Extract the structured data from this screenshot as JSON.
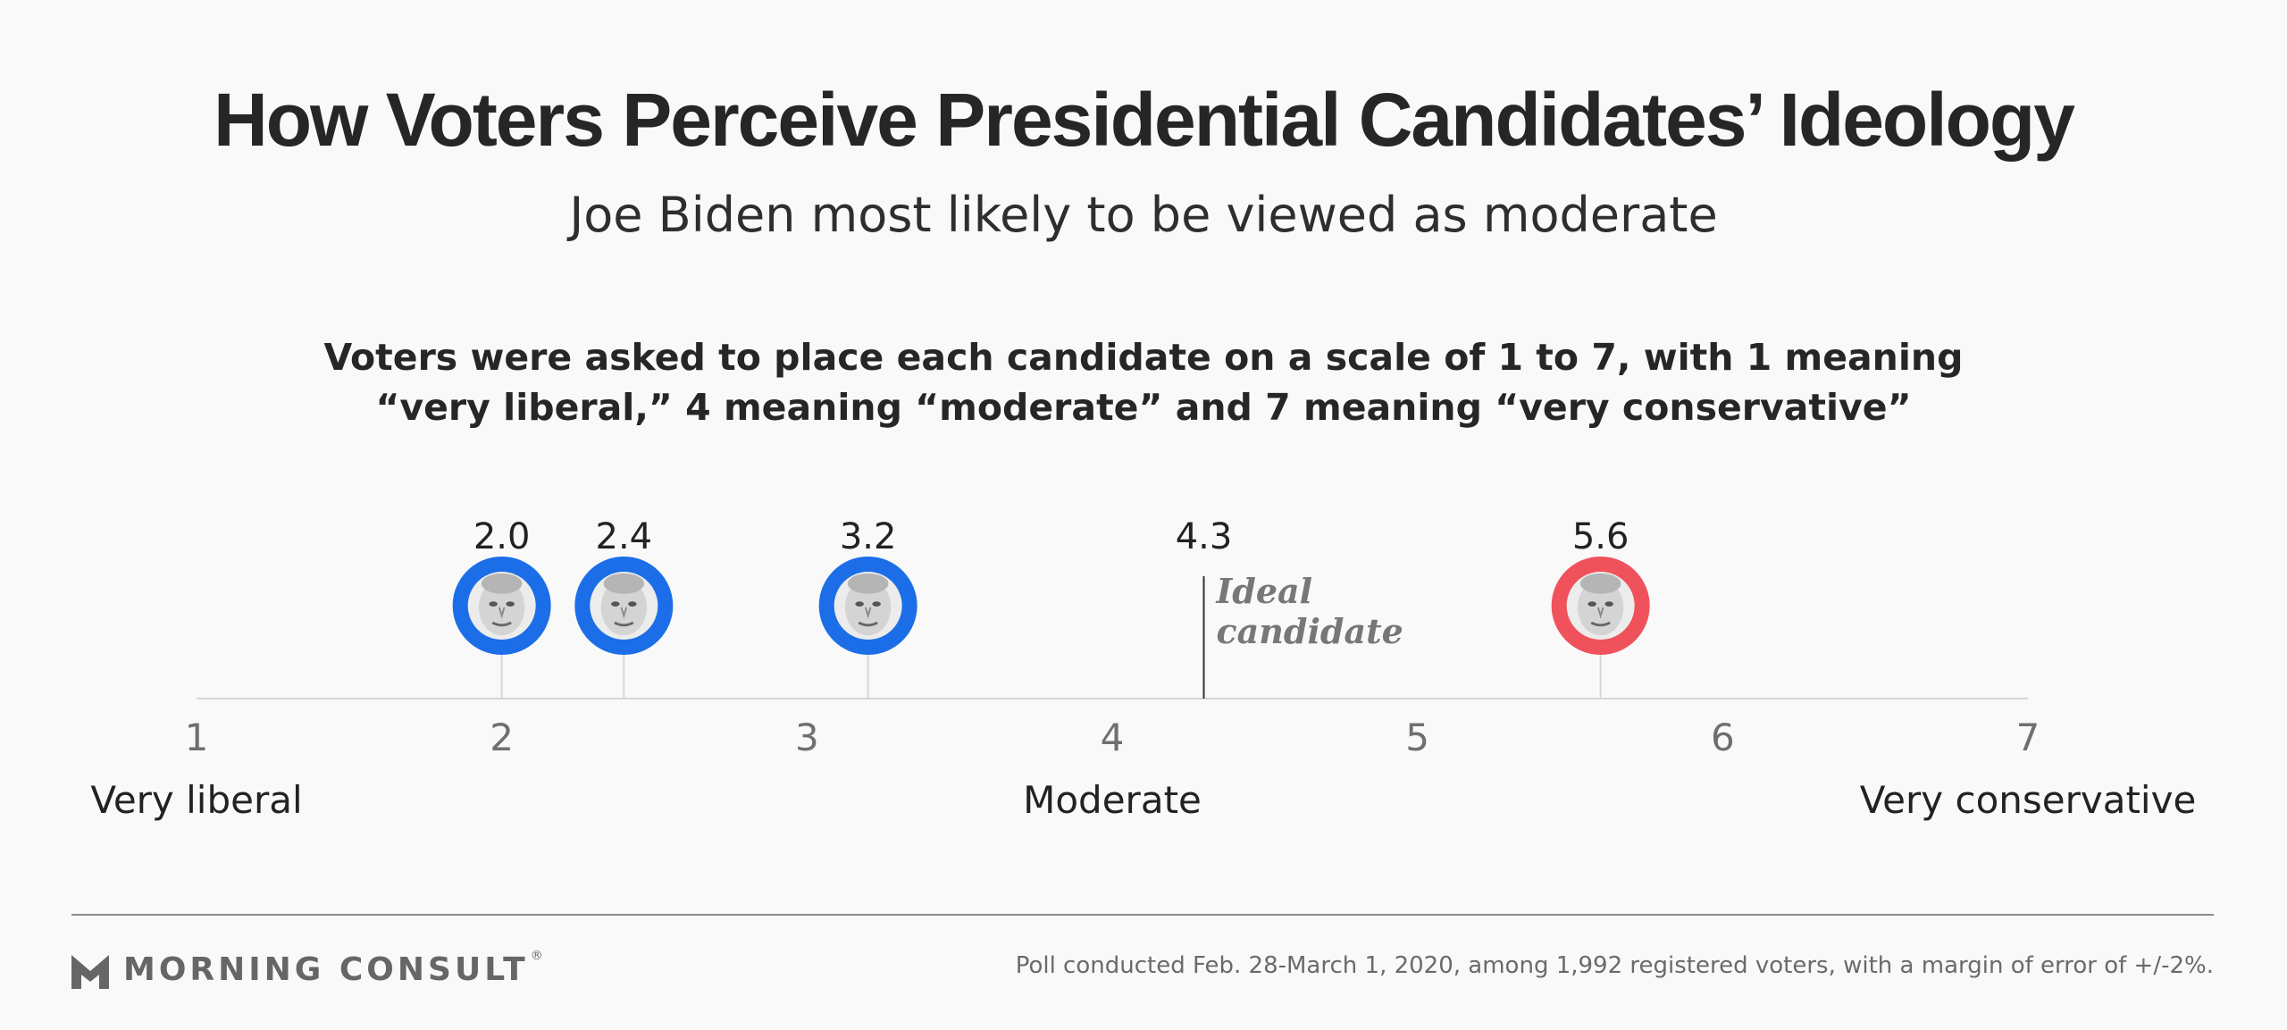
{
  "title": "How Voters Perceive Presidential Candidates’ Ideology",
  "subtitle": "Joe Biden most likely to be viewed as moderate",
  "question": {
    "line1": "Voters were asked to place each candidate on a scale of 1 to 7, with 1 meaning",
    "line2": "“very liberal,” 4 meaning “moderate” and 7 meaning “very conservative”"
  },
  "chart_data": {
    "type": "scatter",
    "xlim": [
      1,
      7
    ],
    "ticks": [
      "1",
      "2",
      "3",
      "4",
      "5",
      "6",
      "7"
    ],
    "scale_labels": [
      {
        "x": 1,
        "label": "Very liberal"
      },
      {
        "x": 4,
        "label": "Moderate"
      },
      {
        "x": 7,
        "label": "Very conservative"
      }
    ],
    "points": [
      {
        "value": 2.0,
        "label": "2.0",
        "color": "#1c6ee8",
        "icon": "candidate-portrait-icon"
      },
      {
        "value": 2.4,
        "label": "2.4",
        "color": "#1c6ee8",
        "icon": "candidate-portrait-icon"
      },
      {
        "value": 3.2,
        "label": "3.2",
        "color": "#1c6ee8",
        "icon": "candidate-portrait-icon"
      },
      {
        "value": 5.6,
        "label": "5.6",
        "color": "#f0525c",
        "icon": "candidate-portrait-icon"
      }
    ],
    "reference": {
      "value": 4.3,
      "label": "4.3",
      "text_lines": [
        "Ideal",
        "candidate"
      ]
    },
    "colors": {
      "axis": "#d6d6d6",
      "reference_line": "#333333"
    }
  },
  "footer": {
    "logo_text": "MORNING CONSULT",
    "logo_reg": "®",
    "note": "Poll conducted Feb. 28-March 1, 2020, among 1,992 registered voters, with a margin of error of +/-2%."
  }
}
